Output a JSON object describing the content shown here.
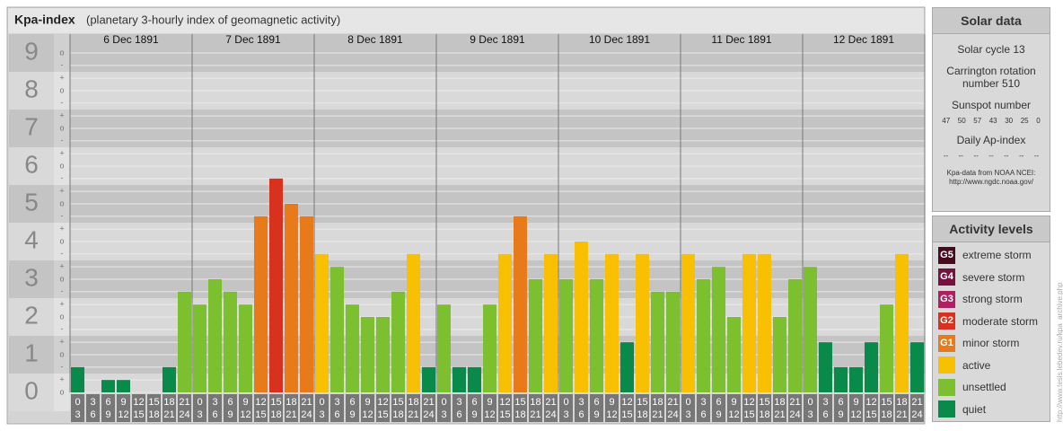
{
  "chart_data": {
    "type": "bar",
    "title": "Kpa-index",
    "subtitle": "(planetary 3-hourly index of geomagnetic activity)",
    "ylim": [
      0,
      9.5
    ],
    "yticks": [
      0,
      1,
      2,
      3,
      4,
      5,
      6,
      7,
      8,
      9
    ],
    "grid": true,
    "ysubticks": [
      {
        "value": 0,
        "label": "o"
      },
      {
        "value": 0.33,
        "label": "+"
      },
      {
        "value": 0.67,
        "label": "-"
      },
      {
        "value": 1,
        "label": "o"
      },
      {
        "value": 1.33,
        "label": "+"
      },
      {
        "value": 1.67,
        "label": "-"
      },
      {
        "value": 2,
        "label": "o"
      },
      {
        "value": 2.33,
        "label": "+"
      },
      {
        "value": 2.67,
        "label": "-"
      },
      {
        "value": 3,
        "label": "o"
      },
      {
        "value": 3.33,
        "label": "+"
      },
      {
        "value": 3.67,
        "label": "-"
      },
      {
        "value": 4,
        "label": "o"
      },
      {
        "value": 4.33,
        "label": "+"
      },
      {
        "value": 4.67,
        "label": "-"
      },
      {
        "value": 5,
        "label": "o"
      },
      {
        "value": 5.33,
        "label": "+"
      },
      {
        "value": 5.67,
        "label": "-"
      },
      {
        "value": 6,
        "label": "o"
      },
      {
        "value": 6.33,
        "label": "+"
      },
      {
        "value": 6.67,
        "label": "-"
      },
      {
        "value": 7,
        "label": "o"
      },
      {
        "value": 7.33,
        "label": "+"
      },
      {
        "value": 7.67,
        "label": "-"
      },
      {
        "value": 8,
        "label": "o"
      },
      {
        "value": 8.33,
        "label": "+"
      },
      {
        "value": 8.67,
        "label": "-"
      },
      {
        "value": 9,
        "label": "o"
      }
    ],
    "hour_ranges": [
      [
        0,
        3
      ],
      [
        3,
        6
      ],
      [
        6,
        9
      ],
      [
        9,
        12
      ],
      [
        12,
        15
      ],
      [
        15,
        18
      ],
      [
        18,
        21
      ],
      [
        21,
        24
      ]
    ],
    "days": [
      {
        "label": "6 Dec 1891",
        "values": [
          0.67,
          0,
          0.33,
          0.33,
          0,
          0,
          0.67,
          2.67
        ],
        "colors": [
          "#0a8a4a",
          "#0a8a4a",
          "#0a8a4a",
          "#0a8a4a",
          "#0a8a4a",
          "#0a8a4a",
          "#0a8a4a",
          "#7cc030"
        ]
      },
      {
        "label": "7 Dec 1891",
        "values": [
          2.33,
          3,
          2.67,
          2.33,
          4.67,
          5.67,
          5,
          4.67
        ],
        "colors": [
          "#7cc030",
          "#7cc030",
          "#7cc030",
          "#7cc030",
          "#e87a1a",
          "#d8321e",
          "#e87a1a",
          "#e87a1a"
        ]
      },
      {
        "label": "8 Dec 1891",
        "values": [
          3.67,
          3.33,
          2.33,
          2,
          2,
          2.67,
          3.67,
          0.67
        ],
        "colors": [
          "#f8c000",
          "#7cc030",
          "#7cc030",
          "#7cc030",
          "#7cc030",
          "#7cc030",
          "#f8c000",
          "#0a8a4a"
        ]
      },
      {
        "label": "9 Dec 1891",
        "values": [
          2.33,
          0.67,
          0.67,
          2.33,
          3.67,
          4.67,
          3,
          3.67
        ],
        "colors": [
          "#7cc030",
          "#0a8a4a",
          "#0a8a4a",
          "#7cc030",
          "#f8c000",
          "#e87a1a",
          "#7cc030",
          "#f8c000"
        ]
      },
      {
        "label": "10 Dec 1891",
        "values": [
          3,
          4,
          3,
          3.67,
          1.33,
          3.67,
          2.67,
          2.67
        ],
        "colors": [
          "#7cc030",
          "#f8c000",
          "#7cc030",
          "#f8c000",
          "#0a8a4a",
          "#f8c000",
          "#7cc030",
          "#7cc030"
        ]
      },
      {
        "label": "11 Dec 1891",
        "values": [
          3.67,
          3,
          3.33,
          2,
          3.67,
          3.67,
          2,
          3
        ],
        "colors": [
          "#f8c000",
          "#7cc030",
          "#7cc030",
          "#7cc030",
          "#f8c000",
          "#f8c000",
          "#7cc030",
          "#7cc030"
        ]
      },
      {
        "label": "12 Dec 1891",
        "values": [
          3.33,
          1.33,
          0.67,
          0.67,
          1.33,
          2.33,
          3.67,
          1.33
        ],
        "colors": [
          "#7cc030",
          "#0a8a4a",
          "#0a8a4a",
          "#0a8a4a",
          "#0a8a4a",
          "#7cc030",
          "#f8c000",
          "#0a8a4a"
        ]
      }
    ]
  },
  "solar": {
    "title": "Solar data",
    "cycle": "Solar cycle 13",
    "rotation": "Carrington rotation number 510",
    "sunspot_title": "Sunspot number",
    "sunspots": [
      47,
      50,
      57,
      43,
      30,
      25,
      0
    ],
    "ap_title": "Daily Ap-index",
    "ap": [
      "--",
      "--",
      "--",
      "--",
      "--",
      "--",
      "--"
    ],
    "source": "Kpa-data from NOAA NCEI:",
    "source_url": "http://www.ngdc.noaa.gov/"
  },
  "legend": {
    "title": "Activity levels",
    "items": [
      {
        "badge": "G5",
        "label": "extreme storm",
        "color": "#4a0a1e"
      },
      {
        "badge": "G4",
        "label": "severe storm",
        "color": "#7a1040"
      },
      {
        "badge": "G3",
        "label": "strong storm",
        "color": "#b02060"
      },
      {
        "badge": "G2",
        "label": "moderate storm",
        "color": "#d8321e"
      },
      {
        "badge": "G1",
        "label": "minor storm",
        "color": "#e87a1a"
      },
      {
        "badge": null,
        "label": "active",
        "color": "#f8c000"
      },
      {
        "badge": null,
        "label": "unsettled",
        "color": "#7cc030"
      },
      {
        "badge": null,
        "label": "quiet",
        "color": "#0a8a4a"
      }
    ]
  },
  "footer_url": "http://www.tesis.lebedev.ru/kpa_archive.php"
}
